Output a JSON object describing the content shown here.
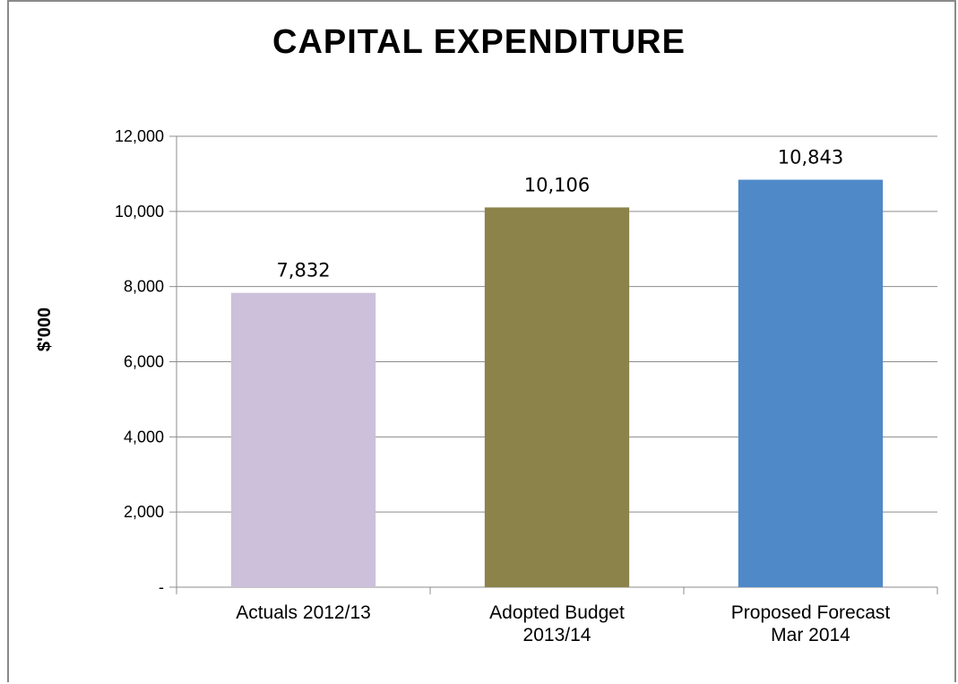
{
  "chart_data": {
    "type": "bar",
    "title": "CAPITAL  EXPENDITURE",
    "ylabel": "$'000",
    "xlabel": "",
    "categories": [
      [
        "Actuals 2012/13"
      ],
      [
        "Adopted Budget",
        "2013/14"
      ],
      [
        "Proposed Forecast",
        "Mar 2014"
      ]
    ],
    "values": [
      7832,
      10106,
      10843
    ],
    "data_labels": [
      "7,832",
      "10,106",
      "10,843"
    ],
    "colors": [
      "#ccc0da",
      "#8b834a",
      "#4f89c8"
    ],
    "ylim": [
      0,
      12000
    ],
    "yticks": [
      0,
      2000,
      4000,
      6000,
      8000,
      10000,
      12000
    ],
    "ytick_labels": [
      "-",
      "2,000",
      "4,000",
      "6,000",
      "8,000",
      "10,000",
      "12,000"
    ],
    "grid": true,
    "legend": "none"
  }
}
